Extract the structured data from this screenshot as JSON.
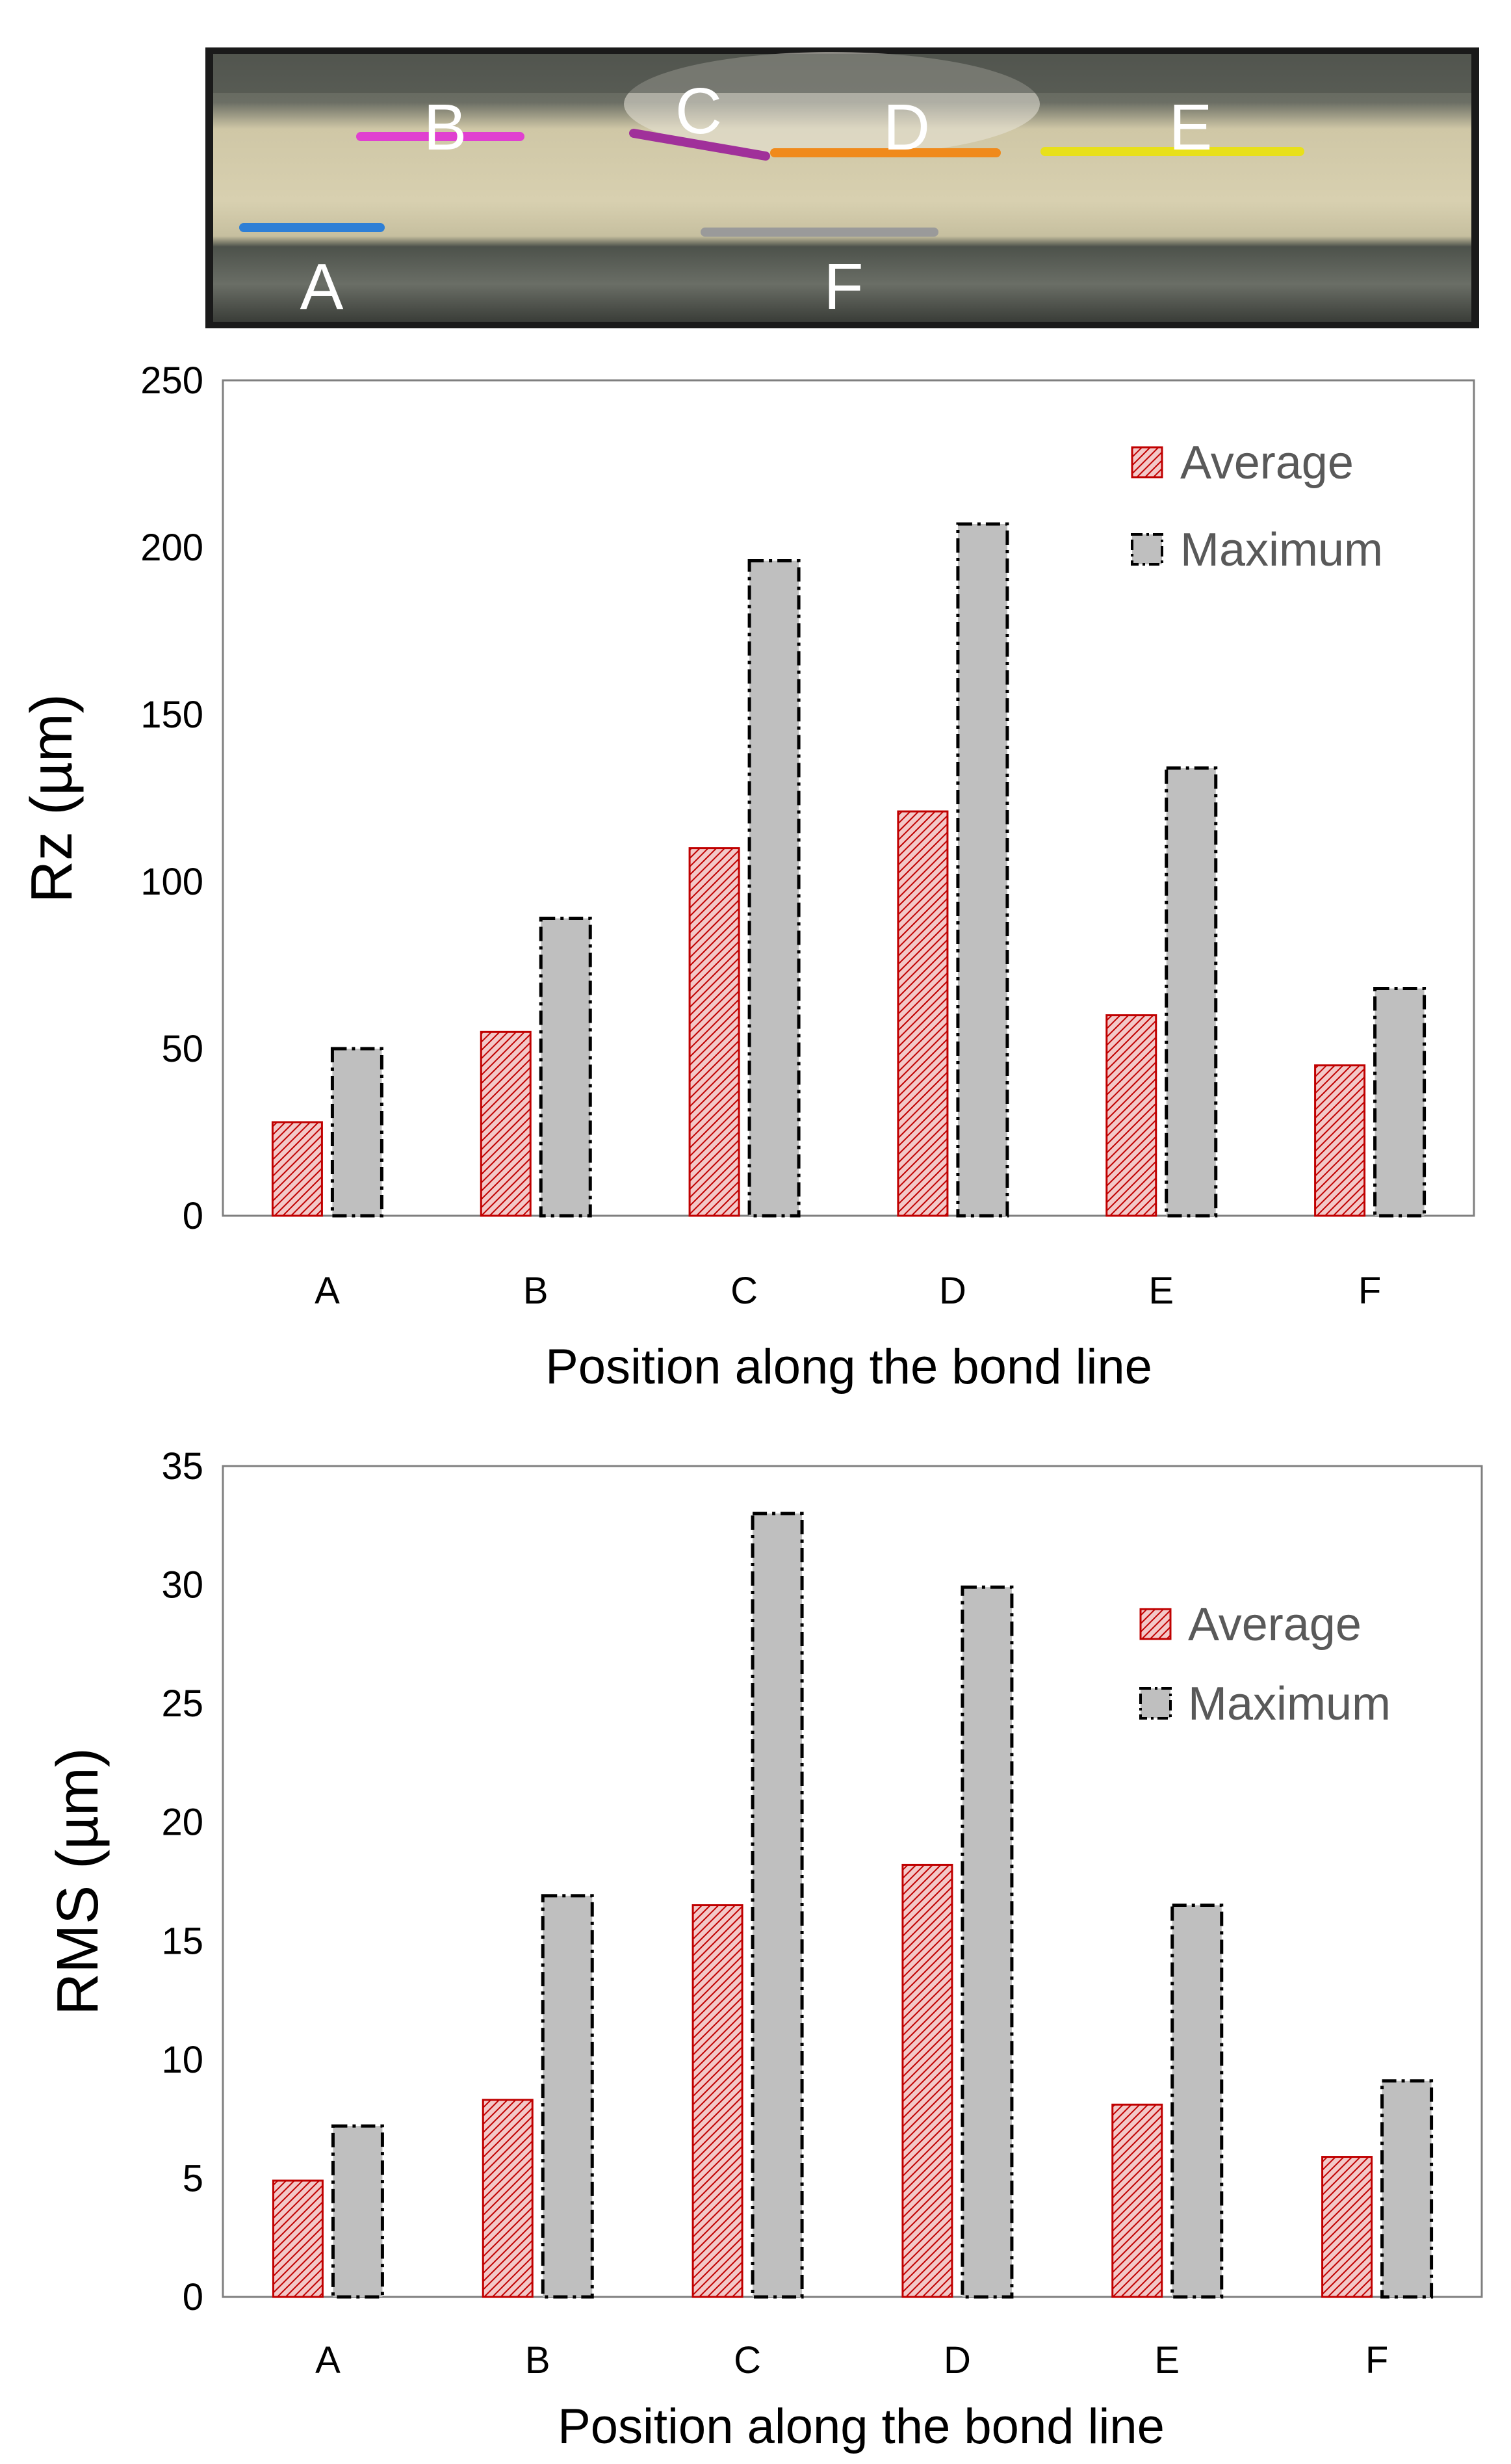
{
  "photo": {
    "labels": [
      "A",
      "B",
      "C",
      "D",
      "E",
      "F"
    ],
    "colors": {
      "A": "#2e7fd6",
      "B": "#e040d0",
      "C": "#a0309a",
      "D": "#f08a1c",
      "E": "#e8e01a",
      "F": "#9a9a9a"
    }
  },
  "colors": {
    "average_fill": "#e06060",
    "average_stroke": "#c00000",
    "maximum_fill": "#bfbfbf",
    "maximum_stroke": "#000000"
  },
  "chart_data": [
    {
      "type": "bar",
      "categories": [
        "A",
        "B",
        "C",
        "D",
        "E",
        "F"
      ],
      "series": [
        {
          "name": "Average",
          "values": [
            28,
            55,
            110,
            121,
            60,
            45
          ]
        },
        {
          "name": "Maximum",
          "values": [
            50,
            89,
            196,
            207,
            134,
            68
          ]
        }
      ],
      "xlabel": "Position along the bond line",
      "ylabel": "Rz (µm)",
      "ylim": [
        0,
        250
      ],
      "yticks": [
        0,
        50,
        100,
        150,
        200,
        250
      ],
      "legend": "top-right",
      "grid": false
    },
    {
      "type": "bar",
      "categories": [
        "A",
        "B",
        "C",
        "D",
        "E",
        "F"
      ],
      "series": [
        {
          "name": "Average",
          "values": [
            4.9,
            8.3,
            16.5,
            18.2,
            8.1,
            5.9
          ]
        },
        {
          "name": "Maximum",
          "values": [
            7.2,
            16.9,
            33,
            29.9,
            16.5,
            9.1
          ]
        }
      ],
      "xlabel": "Position along the bond line",
      "ylabel": "RMS (µm)",
      "ylim": [
        0,
        35
      ],
      "yticks": [
        0,
        5,
        10,
        15,
        20,
        25,
        30,
        35
      ],
      "legend": "top-right",
      "grid": false
    }
  ]
}
